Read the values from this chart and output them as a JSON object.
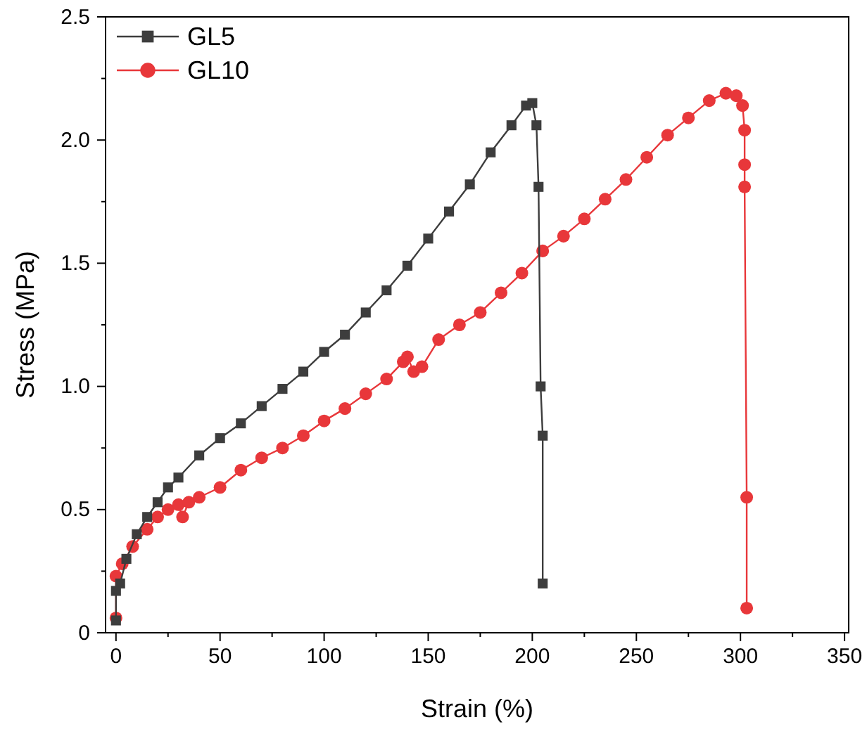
{
  "chart_data": {
    "type": "line",
    "xlabel": "Strain (%)",
    "ylabel": "Stress (MPa)",
    "xlim": [
      -5,
      352
    ],
    "ylim": [
      0,
      2.5
    ],
    "xticks": [
      0,
      {
        "value": 25,
        "label": null
      },
      50,
      {
        "value": 75,
        "label": null
      },
      100,
      {
        "value": 125,
        "label": null
      },
      150,
      {
        "value": 175,
        "label": null
      },
      200,
      {
        "value": 225,
        "label": null
      },
      250,
      {
        "value": 275,
        "label": null
      },
      300,
      {
        "value": 325,
        "label": null
      },
      350
    ],
    "yticks": [
      0.0,
      {
        "value": 0.25,
        "label": null
      },
      {
        "value": 0.5,
        "label": "0.5"
      },
      {
        "value": 0.75,
        "label": null
      },
      {
        "value": 1.0,
        "label": "1.0"
      },
      {
        "value": 1.25,
        "label": null
      },
      {
        "value": 1.5,
        "label": "1.5"
      },
      {
        "value": 1.75,
        "label": null
      },
      {
        "value": 2.0,
        "label": "2.0"
      },
      {
        "value": 2.25,
        "label": null
      },
      {
        "value": 2.5,
        "label": "2.5"
      }
    ],
    "grid": false,
    "legend": "top left",
    "line_style": "solid",
    "series": [
      {
        "name": "GL5",
        "color": "#3d3d3d",
        "marker": "square",
        "x": [
          0,
          0,
          2,
          5,
          10,
          15,
          20,
          25,
          30,
          40,
          50,
          60,
          70,
          80,
          90,
          100,
          110,
          120,
          130,
          140,
          150,
          160,
          170,
          180,
          190,
          197,
          200,
          202,
          203,
          204,
          205,
          205
        ],
        "values": [
          0.05,
          0.17,
          0.2,
          0.3,
          0.4,
          0.47,
          0.53,
          0.59,
          0.63,
          0.72,
          0.79,
          0.85,
          0.92,
          0.99,
          1.06,
          1.14,
          1.21,
          1.3,
          1.39,
          1.49,
          1.6,
          1.71,
          1.82,
          1.95,
          2.06,
          2.14,
          2.15,
          2.06,
          1.81,
          1.0,
          0.8,
          0.2
        ]
      },
      {
        "name": "GL10",
        "color": "#e8373a",
        "marker": "circle",
        "x": [
          0,
          0,
          3,
          8,
          15,
          20,
          25,
          30,
          32,
          35,
          40,
          50,
          60,
          70,
          80,
          90,
          100,
          110,
          120,
          130,
          138,
          140,
          143,
          147,
          155,
          165,
          175,
          185,
          195,
          205,
          215,
          225,
          235,
          245,
          255,
          265,
          275,
          285,
          293,
          298,
          301,
          302,
          302,
          302,
          303,
          303
        ],
        "values": [
          0.06,
          0.23,
          0.28,
          0.35,
          0.42,
          0.47,
          0.5,
          0.52,
          0.47,
          0.53,
          0.55,
          0.59,
          0.66,
          0.71,
          0.75,
          0.8,
          0.86,
          0.91,
          0.97,
          1.03,
          1.1,
          1.12,
          1.06,
          1.08,
          1.19,
          1.25,
          1.3,
          1.38,
          1.46,
          1.55,
          1.61,
          1.68,
          1.76,
          1.84,
          1.93,
          2.02,
          2.09,
          2.16,
          2.19,
          2.18,
          2.14,
          2.04,
          1.9,
          1.81,
          0.55,
          0.1
        ]
      }
    ]
  }
}
